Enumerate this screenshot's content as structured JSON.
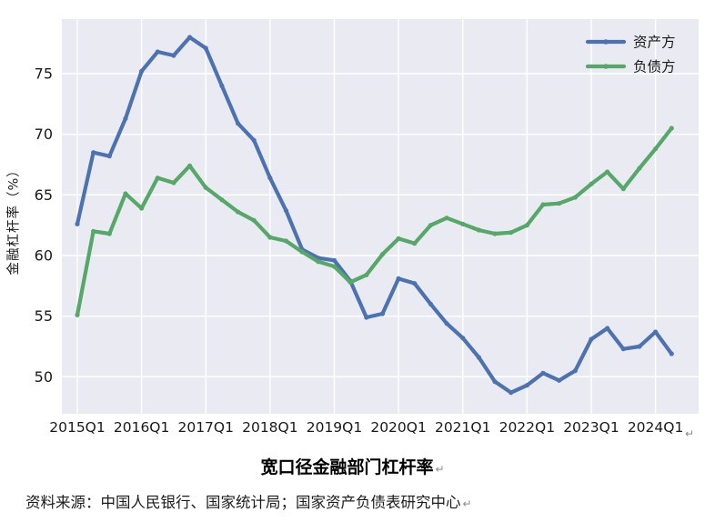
{
  "chart_data": {
    "type": "line",
    "title": "宽口径金融部门杠杆率",
    "ylabel": "金融杠杆率（%）",
    "plot_bg": "#EAEAF2",
    "grid_color": "#FFFFFF",
    "grid": true,
    "legend_position": "top-right",
    "ylim": [
      47,
      79.6
    ],
    "y_ticks": [
      50,
      55,
      60,
      65,
      70,
      75
    ],
    "x_tick_labels": [
      "2015Q1",
      "2016Q1",
      "2017Q1",
      "2018Q1",
      "2019Q1",
      "2020Q1",
      "2021Q1",
      "2022Q1",
      "2023Q1",
      "2024Q1"
    ],
    "quarters": [
      "2015Q1",
      "2015Q2",
      "2015Q3",
      "2015Q4",
      "2016Q1",
      "2016Q2",
      "2016Q3",
      "2016Q4",
      "2017Q1",
      "2017Q2",
      "2017Q3",
      "2017Q4",
      "2018Q1",
      "2018Q2",
      "2018Q3",
      "2018Q4",
      "2019Q1",
      "2019Q2",
      "2019Q3",
      "2019Q4",
      "2020Q1",
      "2020Q2",
      "2020Q3",
      "2020Q4",
      "2021Q1",
      "2021Q2",
      "2021Q3",
      "2021Q4",
      "2022Q1",
      "2022Q2",
      "2022Q3",
      "2022Q4",
      "2023Q1",
      "2023Q2",
      "2023Q3",
      "2023Q4",
      "2024Q1",
      "2024Q2"
    ],
    "series": [
      {
        "name": "资产方",
        "color": "#4C72B0",
        "marker_color": "#41639c",
        "values": [
          62.6,
          68.5,
          68.2,
          71.3,
          75.2,
          76.8,
          76.5,
          78.0,
          77.1,
          74.0,
          70.9,
          69.5,
          66.4,
          63.7,
          60.5,
          59.8,
          59.6,
          57.9,
          54.9,
          55.2,
          58.1,
          57.7,
          56.0,
          54.4,
          53.2,
          51.6,
          49.6,
          48.7,
          49.3,
          50.3,
          49.7,
          50.5,
          53.1,
          54.0,
          52.3,
          52.5,
          53.7,
          51.9
        ]
      },
      {
        "name": "负债方",
        "color": "#55A868",
        "marker_color": "#4a945c",
        "values": [
          55.1,
          62.0,
          61.8,
          65.1,
          63.9,
          66.4,
          66.0,
          67.4,
          65.6,
          64.6,
          63.6,
          62.9,
          61.5,
          61.2,
          60.3,
          59.5,
          59.1,
          57.8,
          58.4,
          60.1,
          61.4,
          61.0,
          62.5,
          63.1,
          62.6,
          62.1,
          61.8,
          61.9,
          62.5,
          64.2,
          64.3,
          64.8,
          65.9,
          66.9,
          65.5,
          67.2,
          68.8,
          70.5
        ]
      }
    ]
  },
  "caption": {
    "title": "宽口径金融部门杠杆率",
    "paragraph_mark": "↵"
  },
  "source": {
    "text": "资料来源：中国人民银行、国家统计局；国家资产负债表研究中心",
    "paragraph_mark": "↵"
  },
  "page": {
    "end_mark": "↵"
  }
}
